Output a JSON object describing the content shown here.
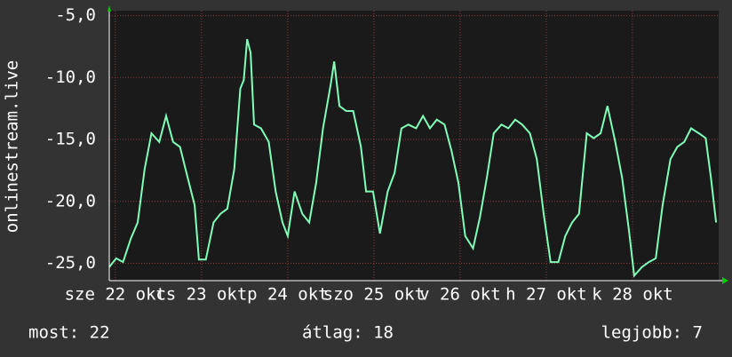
{
  "chart_data": {
    "type": "line",
    "y_label": "onlinestream.live",
    "x": [
      21.93,
      22.01,
      22.09,
      22.18,
      22.26,
      22.34,
      22.42,
      22.51,
      22.59,
      22.67,
      22.75,
      22.84,
      22.92,
      22.97,
      23.05,
      23.14,
      23.22,
      23.3,
      23.38,
      23.45,
      23.49,
      23.53,
      23.57,
      23.61,
      23.69,
      23.78,
      23.86,
      23.94,
      24.0,
      24.08,
      24.17,
      24.25,
      24.33,
      24.41,
      24.5,
      24.54,
      24.6,
      24.68,
      24.76,
      24.85,
      24.91,
      24.99,
      25.07,
      25.16,
      25.24,
      25.32,
      25.4,
      25.49,
      25.57,
      25.65,
      25.73,
      25.82,
      25.9,
      25.98,
      26.06,
      26.15,
      26.23,
      26.31,
      26.39,
      26.48,
      26.56,
      26.64,
      26.72,
      26.81,
      26.89,
      26.97,
      27.05,
      27.14,
      27.22,
      27.3,
      27.38,
      27.47,
      27.55,
      27.63,
      27.71,
      27.8,
      27.88,
      27.96,
      28.02,
      28.11,
      28.19,
      28.27,
      28.35,
      28.44,
      28.52,
      28.6,
      28.68,
      28.77,
      28.85,
      28.91,
      28.97
    ],
    "series": [
      {
        "color": "#80ffb8",
        "values": [
          -25.3,
          -24.6,
          -24.9,
          -23.0,
          -21.7,
          -17.4,
          -14.5,
          -15.2,
          -13.1,
          -15.2,
          -15.6,
          -18.1,
          -20.3,
          -24.7,
          -24.7,
          -21.7,
          -21.0,
          -20.6,
          -17.4,
          -10.9,
          -10.2,
          -6.9,
          -8.0,
          -13.8,
          -14.1,
          -15.2,
          -19.2,
          -21.7,
          -22.8,
          -19.2,
          -21.0,
          -21.7,
          -18.5,
          -14.1,
          -10.5,
          -8.7,
          -12.3,
          -12.7,
          -12.7,
          -15.6,
          -19.2,
          -19.2,
          -22.6,
          -19.2,
          -17.7,
          -14.1,
          -13.8,
          -14.1,
          -13.1,
          -14.1,
          -13.4,
          -13.8,
          -15.9,
          -18.5,
          -22.8,
          -23.8,
          -21.3,
          -18.1,
          -14.5,
          -13.8,
          -14.1,
          -13.4,
          -13.8,
          -14.5,
          -16.6,
          -21.0,
          -24.9,
          -24.9,
          -22.8,
          -21.7,
          -21.0,
          -14.5,
          -14.9,
          -14.5,
          -12.3,
          -15.2,
          -18.1,
          -22.4,
          -26.0,
          -25.3,
          -24.9,
          -24.6,
          -20.3,
          -16.6,
          -15.6,
          -15.2,
          -14.1,
          -14.5,
          -14.9,
          -18.1,
          -21.7
        ]
      }
    ],
    "xlim": [
      21.93,
      29.0
    ],
    "xticks": [
      {
        "value": 22,
        "label": "sze 22 okt"
      },
      {
        "value": 23,
        "label": "cs 23 okt"
      },
      {
        "value": 24,
        "label": "p 24 okt"
      },
      {
        "value": 25,
        "label": "szo 25 okt"
      },
      {
        "value": 26,
        "label": "v 26 okt"
      },
      {
        "value": 27,
        "label": "h 27 okt"
      },
      {
        "value": 28,
        "label": "k 28 okt"
      }
    ],
    "ylim": [
      -26.4,
      -4.6
    ],
    "yticks": [
      {
        "value": -5,
        "label": "-5,0"
      },
      {
        "value": -10,
        "label": "-10,0"
      },
      {
        "value": -15,
        "label": "-15,0"
      },
      {
        "value": -20,
        "label": "-20,0"
      },
      {
        "value": -25,
        "label": "-25,0"
      }
    ],
    "grid": true
  },
  "footer": {
    "current": "most: 22",
    "average": "átlag: 18",
    "max": "legjobb: 7"
  }
}
